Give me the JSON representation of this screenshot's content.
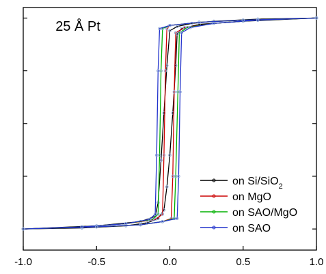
{
  "chart_data": {
    "type": "line",
    "title": "",
    "xlabel": "",
    "ylabel": "",
    "xlim": [
      -1.0,
      1.0
    ],
    "ylim": [
      -1.2,
      1.1
    ],
    "x_ticks": [
      -1.0,
      -0.5,
      0.0,
      0.5,
      1.0
    ],
    "x_tick_labels": [
      "-1.0",
      "-0.5",
      "0.0",
      "0.5",
      "1.0"
    ],
    "y_ticks": [
      -1.0,
      -0.5,
      0.0,
      0.5,
      1.0
    ],
    "grid": false,
    "legend_position": "bottom-right",
    "annotations": [
      {
        "text": "25 Å Pt",
        "x": -0.78,
        "y": 0.88
      }
    ],
    "series": [
      {
        "name": "on Si/SiO2",
        "label_main": "on Si/SiO",
        "label_sub": "2",
        "color": "#000000",
        "ascending": [
          [
            -1.0,
            -1.0
          ],
          [
            -0.6,
            -0.99
          ],
          [
            -0.3,
            -0.97
          ],
          [
            -0.15,
            -0.94
          ],
          [
            -0.08,
            -0.9
          ],
          [
            -0.04,
            -0.82
          ],
          [
            -0.02,
            -0.6
          ],
          [
            0.0,
            -0.3
          ],
          [
            0.02,
            0.1
          ],
          [
            0.04,
            0.55
          ],
          [
            0.05,
            0.85
          ],
          [
            0.08,
            0.9
          ],
          [
            0.2,
            0.94
          ],
          [
            0.5,
            0.97
          ],
          [
            1.0,
            1.0
          ]
        ],
        "descending": [
          [
            1.0,
            1.0
          ],
          [
            0.6,
            0.99
          ],
          [
            0.3,
            0.97
          ],
          [
            0.15,
            0.95
          ],
          [
            0.05,
            0.92
          ],
          [
            0.0,
            0.88
          ],
          [
            -0.02,
            0.55
          ],
          [
            -0.04,
            0.1
          ],
          [
            -0.06,
            -0.35
          ],
          [
            -0.08,
            -0.75
          ],
          [
            -0.1,
            -0.88
          ],
          [
            -0.2,
            -0.93
          ],
          [
            -0.5,
            -0.97
          ],
          [
            -1.0,
            -1.0
          ]
        ]
      },
      {
        "name": "on MgO",
        "label_main": "on MgO",
        "label_sub": "",
        "color": "#cc0000",
        "ascending": [
          [
            -1.0,
            -1.0
          ],
          [
            -0.5,
            -0.98
          ],
          [
            -0.2,
            -0.96
          ],
          [
            -0.05,
            -0.93
          ],
          [
            0.01,
            -0.9
          ],
          [
            0.02,
            -0.5
          ],
          [
            0.03,
            0.3
          ],
          [
            0.04,
            0.86
          ],
          [
            0.1,
            0.91
          ],
          [
            0.3,
            0.95
          ],
          [
            0.6,
            0.98
          ],
          [
            1.0,
            1.0
          ]
        ],
        "descending": [
          [
            1.0,
            1.0
          ],
          [
            0.5,
            0.98
          ],
          [
            0.2,
            0.96
          ],
          [
            0.0,
            0.93
          ],
          [
            -0.02,
            0.9
          ],
          [
            -0.03,
            0.5
          ],
          [
            -0.04,
            -0.3
          ],
          [
            -0.05,
            -0.86
          ],
          [
            -0.1,
            -0.91
          ],
          [
            -0.3,
            -0.95
          ],
          [
            -0.6,
            -0.98
          ],
          [
            -1.0,
            -1.0
          ]
        ]
      },
      {
        "name": "on SAO/MgO",
        "label_main": "on SAO/MgO",
        "label_sub": "",
        "color": "#00b000",
        "ascending": [
          [
            -1.0,
            -1.0
          ],
          [
            -0.5,
            -0.98
          ],
          [
            -0.2,
            -0.96
          ],
          [
            -0.05,
            -0.93
          ],
          [
            0.03,
            -0.9
          ],
          [
            0.04,
            -0.5
          ],
          [
            0.055,
            0.3
          ],
          [
            0.065,
            0.86
          ],
          [
            0.12,
            0.91
          ],
          [
            0.3,
            0.95
          ],
          [
            0.6,
            0.98
          ],
          [
            1.0,
            1.0
          ]
        ],
        "descending": [
          [
            1.0,
            1.0
          ],
          [
            0.5,
            0.98
          ],
          [
            0.2,
            0.96
          ],
          [
            0.0,
            0.93
          ],
          [
            -0.05,
            0.9
          ],
          [
            -0.06,
            0.5
          ],
          [
            -0.07,
            -0.3
          ],
          [
            -0.08,
            -0.86
          ],
          [
            -0.12,
            -0.91
          ],
          [
            -0.3,
            -0.95
          ],
          [
            -0.6,
            -0.98
          ],
          [
            -1.0,
            -1.0
          ]
        ]
      },
      {
        "name": "on SAO",
        "label_main": "on SAO",
        "label_sub": "",
        "color": "#2233cc",
        "ascending": [
          [
            -1.0,
            -1.0
          ],
          [
            -0.5,
            -0.98
          ],
          [
            -0.2,
            -0.96
          ],
          [
            -0.05,
            -0.93
          ],
          [
            0.05,
            -0.9
          ],
          [
            0.06,
            -0.5
          ],
          [
            0.07,
            0.3
          ],
          [
            0.08,
            0.86
          ],
          [
            0.14,
            0.91
          ],
          [
            0.3,
            0.95
          ],
          [
            0.6,
            0.98
          ],
          [
            1.0,
            1.0
          ]
        ],
        "descending": [
          [
            1.0,
            1.0
          ],
          [
            0.5,
            0.98
          ],
          [
            0.2,
            0.96
          ],
          [
            0.0,
            0.93
          ],
          [
            -0.07,
            0.9
          ],
          [
            -0.08,
            0.5
          ],
          [
            -0.09,
            -0.3
          ],
          [
            -0.1,
            -0.86
          ],
          [
            -0.14,
            -0.91
          ],
          [
            -0.3,
            -0.95
          ],
          [
            -0.6,
            -0.98
          ],
          [
            -1.0,
            -1.0
          ]
        ]
      }
    ]
  }
}
